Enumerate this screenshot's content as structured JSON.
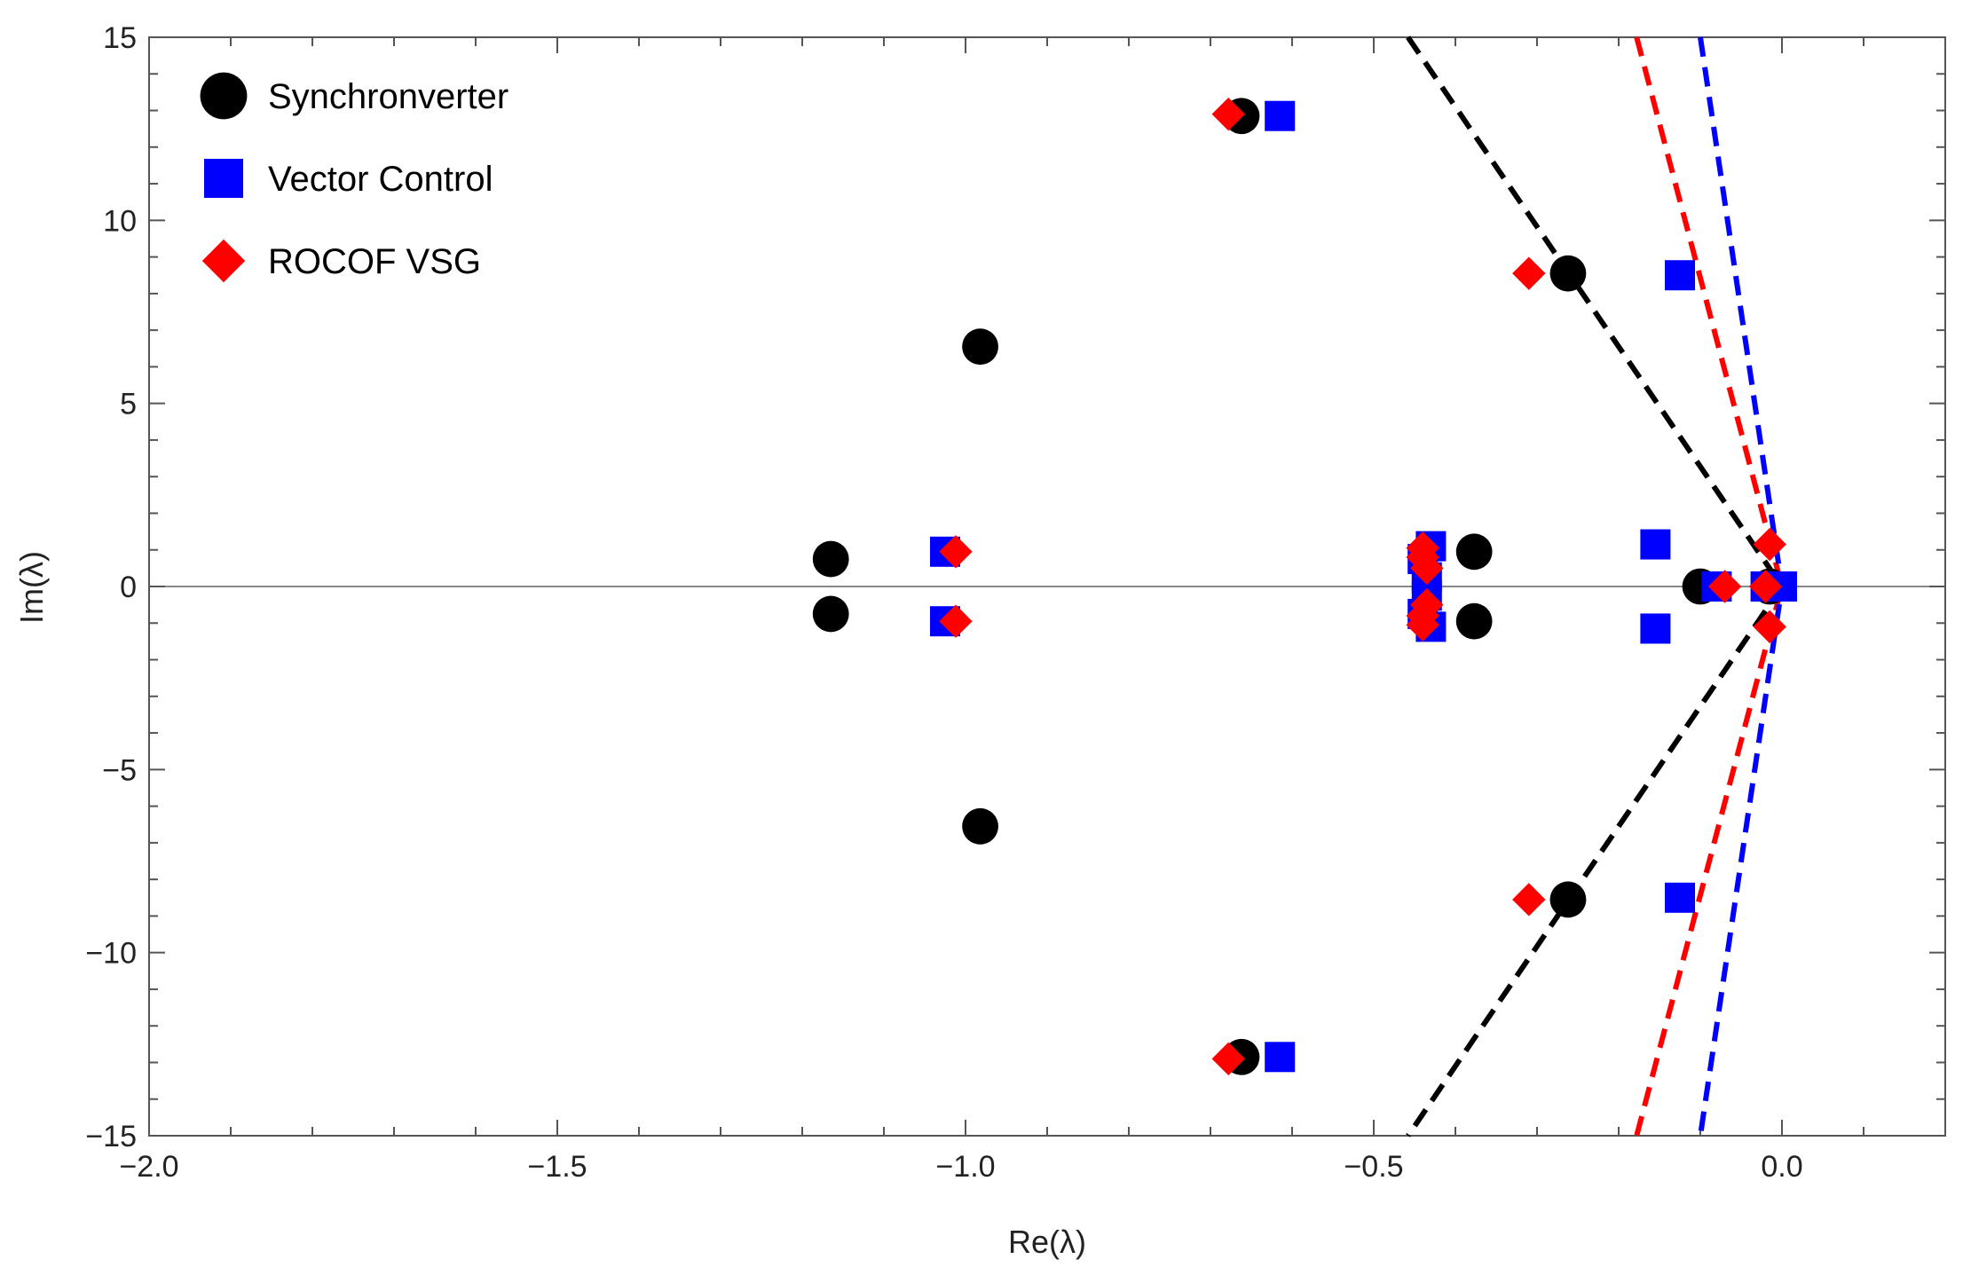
{
  "chart_data": {
    "type": "scatter",
    "title": "",
    "xlabel": "Re(λ)",
    "ylabel": "Im(λ)",
    "xlim": [
      -2.0,
      0.2
    ],
    "ylim": [
      -15,
      15
    ],
    "x_ticks": [
      -2.0,
      -1.5,
      -1.0,
      -0.5,
      0.0
    ],
    "x_tick_labels": [
      "−2.0",
      "−1.5",
      "−1.0",
      "−0.5",
      "0.0"
    ],
    "y_ticks": [
      -15,
      -10,
      -5,
      0,
      5,
      10,
      15
    ],
    "y_tick_labels": [
      "−15",
      "−10",
      "−5",
      "0",
      "5",
      "10",
      "15"
    ],
    "grid": false,
    "legend_position": "top-left",
    "series": [
      {
        "name": "Synchronverter",
        "marker": "circle",
        "color": "#000000",
        "points": [
          {
            "x": -1.165,
            "y": 0.75
          },
          {
            "x": -1.165,
            "y": -0.75
          },
          {
            "x": -0.982,
            "y": 6.55
          },
          {
            "x": -0.982,
            "y": -6.55
          },
          {
            "x": -0.662,
            "y": 12.85
          },
          {
            "x": -0.662,
            "y": -12.85
          },
          {
            "x": -0.262,
            "y": 8.55
          },
          {
            "x": -0.262,
            "y": -8.55
          },
          {
            "x": -0.377,
            "y": 0.95
          },
          {
            "x": -0.377,
            "y": -0.95
          },
          {
            "x": -0.1,
            "y": 0.0
          },
          {
            "x": -0.015,
            "y": 0.0
          }
        ]
      },
      {
        "name": "Vector Control",
        "marker": "square",
        "color": "#0000ff",
        "points": [
          {
            "x": -1.025,
            "y": 0.95
          },
          {
            "x": -1.025,
            "y": -0.95
          },
          {
            "x": -0.615,
            "y": 12.85
          },
          {
            "x": -0.615,
            "y": -12.85
          },
          {
            "x": -0.125,
            "y": 8.5
          },
          {
            "x": -0.125,
            "y": -8.5
          },
          {
            "x": -0.155,
            "y": 1.15
          },
          {
            "x": -0.155,
            "y": -1.15
          },
          {
            "x": -0.44,
            "y": 0.75
          },
          {
            "x": -0.44,
            "y": -0.75
          },
          {
            "x": -0.43,
            "y": 1.1
          },
          {
            "x": -0.43,
            "y": -1.1
          },
          {
            "x": -0.435,
            "y": 0.25
          },
          {
            "x": -0.435,
            "y": -0.25
          },
          {
            "x": -0.08,
            "y": 0.0
          },
          {
            "x": -0.02,
            "y": 0.0
          },
          {
            "x": 0.0,
            "y": 0.0
          }
        ]
      },
      {
        "name": "ROCOF VSG",
        "marker": "diamond",
        "color": "#ff0000",
        "points": [
          {
            "x": -1.012,
            "y": 0.95
          },
          {
            "x": -1.012,
            "y": -0.95
          },
          {
            "x": -0.678,
            "y": 12.9
          },
          {
            "x": -0.678,
            "y": -12.9
          },
          {
            "x": -0.31,
            "y": 8.55
          },
          {
            "x": -0.31,
            "y": -8.55
          },
          {
            "x": -0.44,
            "y": 1.05
          },
          {
            "x": -0.44,
            "y": -1.05
          },
          {
            "x": -0.44,
            "y": 0.8
          },
          {
            "x": -0.44,
            "y": -0.8
          },
          {
            "x": -0.435,
            "y": 0.5
          },
          {
            "x": -0.435,
            "y": -0.5
          },
          {
            "x": -0.07,
            "y": 0.0
          },
          {
            "x": -0.02,
            "y": 0.0
          },
          {
            "x": -0.015,
            "y": 1.15
          },
          {
            "x": -0.015,
            "y": -1.1
          }
        ]
      }
    ],
    "damping_lines": [
      {
        "name": "Synchronverter",
        "color": "#000000",
        "points": [
          [
            -0.458,
            15
          ],
          [
            0.0,
            0
          ],
          [
            -0.458,
            -15
          ]
        ]
      },
      {
        "name": "ROCOF VSG",
        "color": "#ff0000",
        "points": [
          [
            -0.178,
            15
          ],
          [
            0.0,
            0
          ],
          [
            -0.178,
            -15
          ]
        ]
      },
      {
        "name": "Vector Control",
        "color": "#0000ff",
        "points": [
          [
            -0.1,
            15
          ],
          [
            0.0,
            0
          ],
          [
            -0.1,
            -15
          ]
        ]
      }
    ]
  }
}
